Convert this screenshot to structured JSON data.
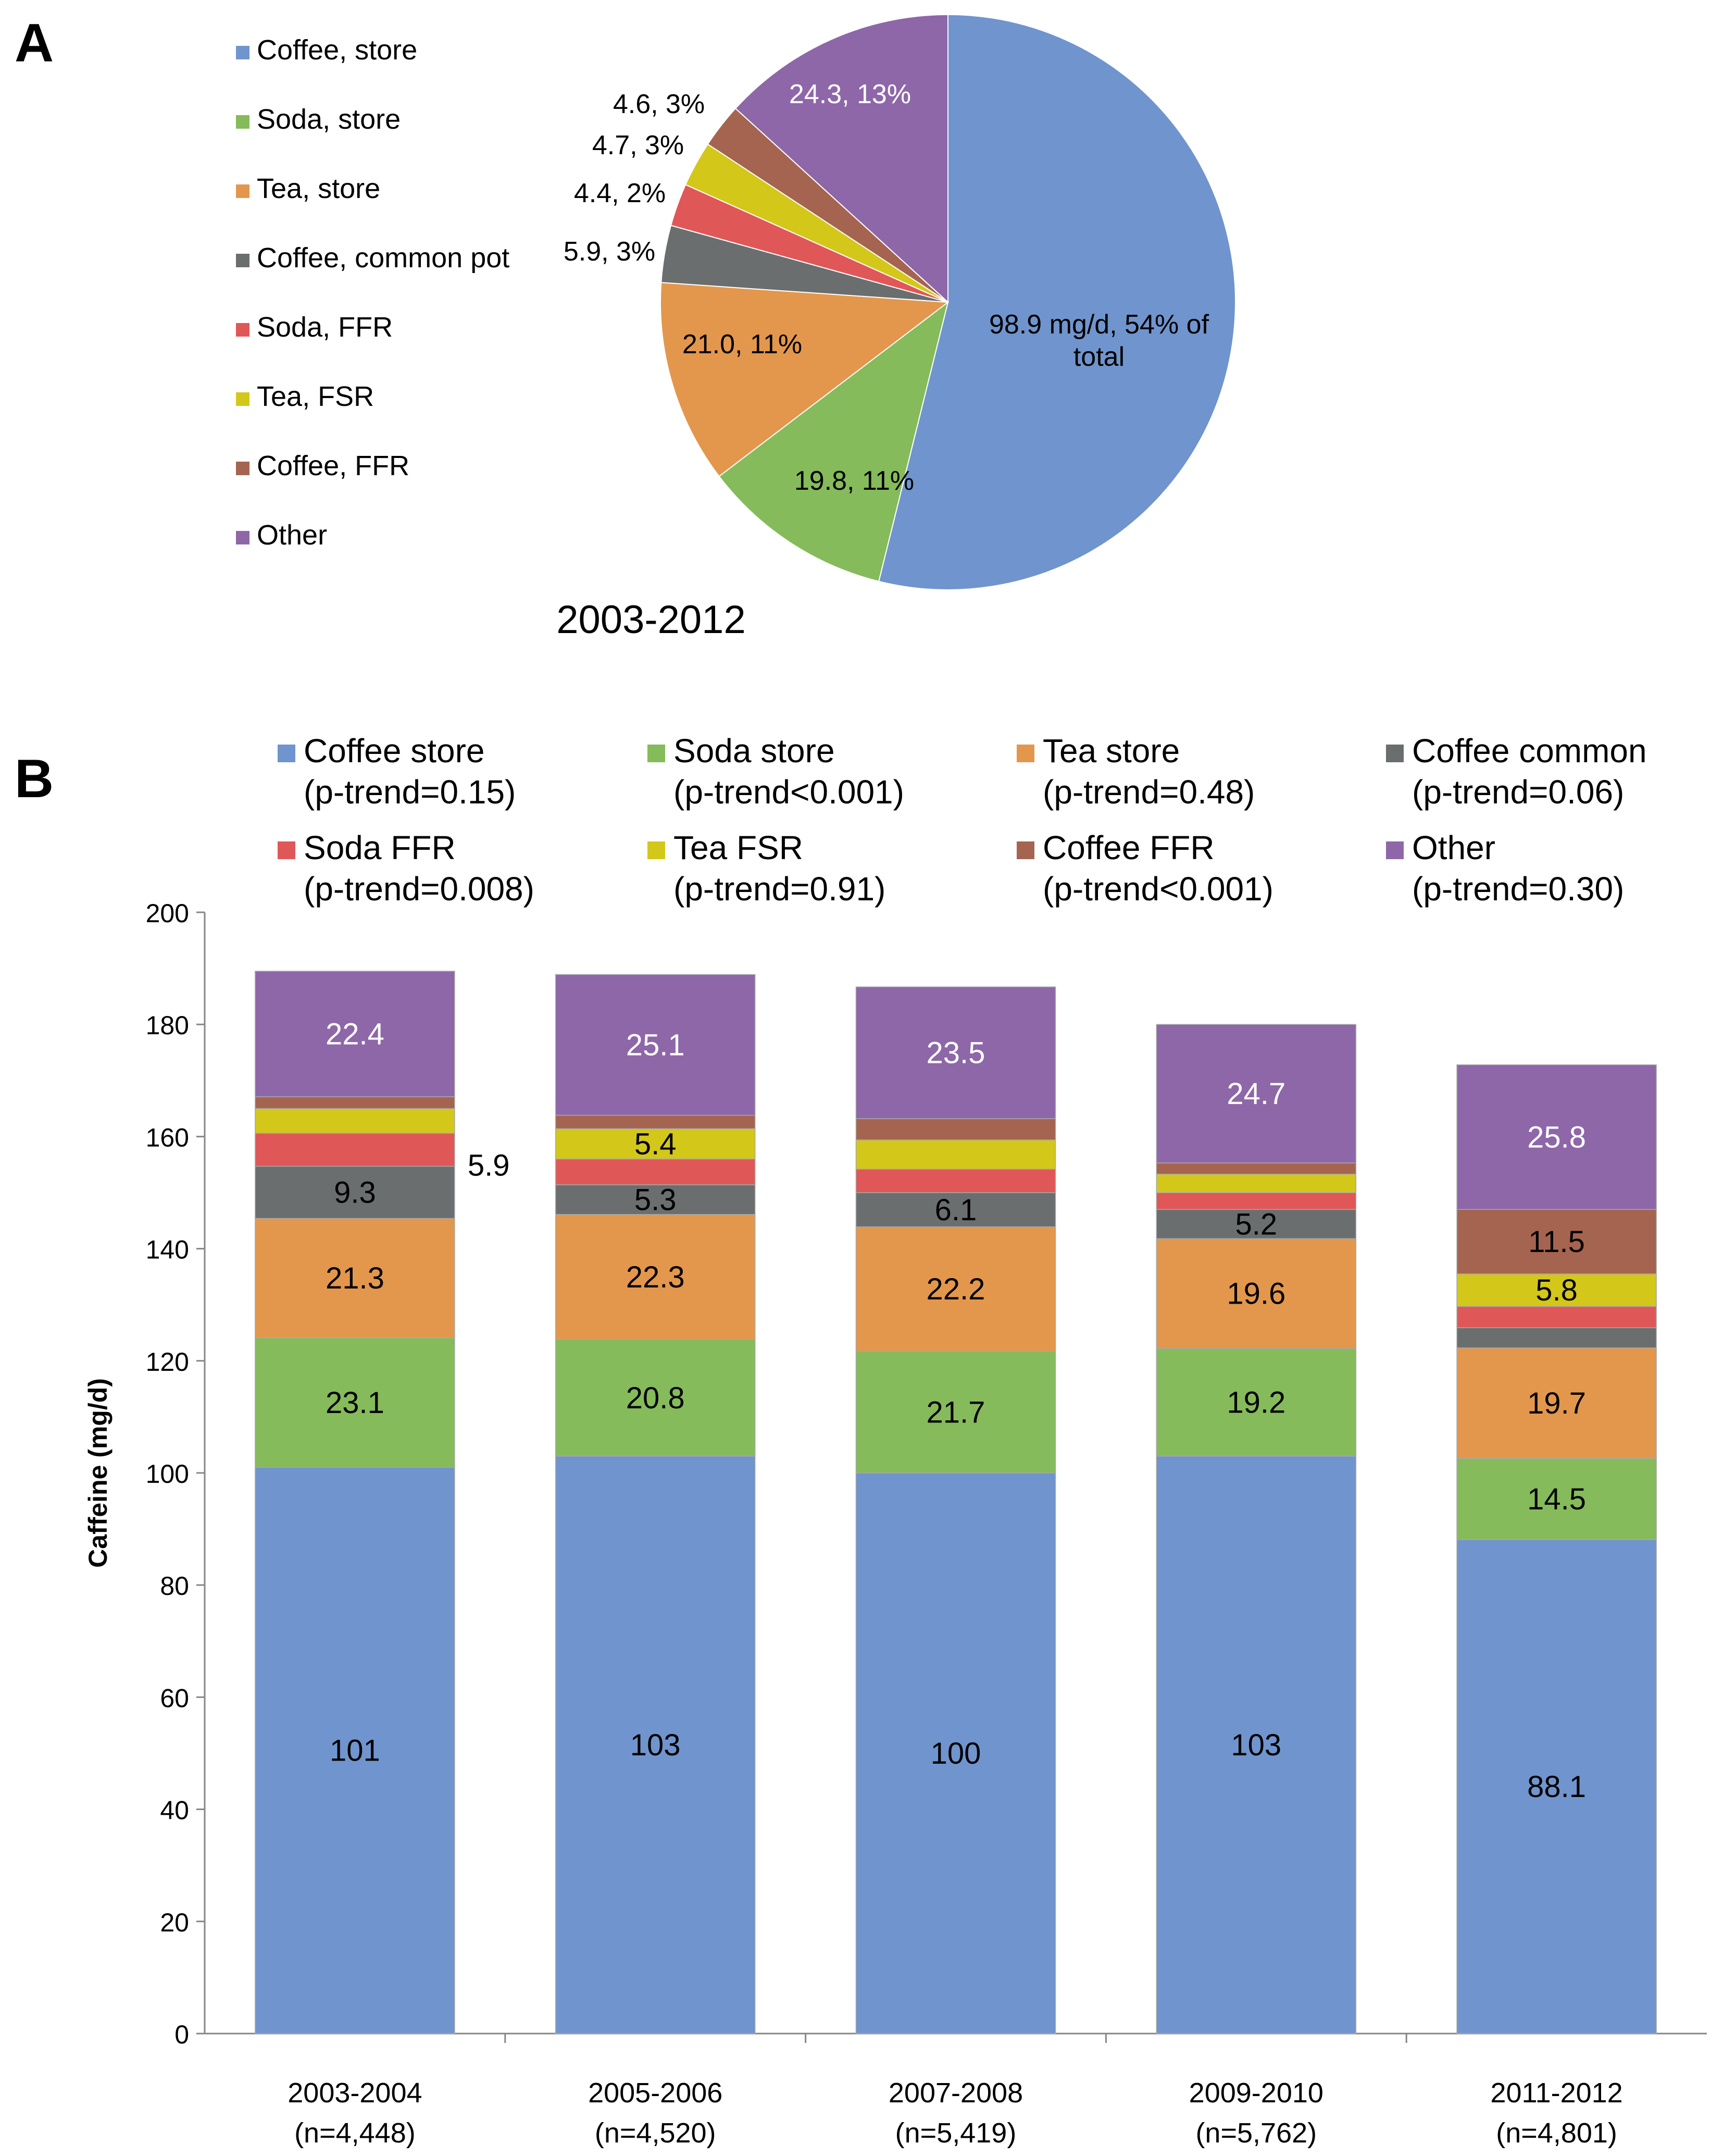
{
  "panel_a": {
    "label": "A",
    "caption": "2003-2012"
  },
  "panel_b": {
    "label": "B"
  },
  "colors": {
    "coffee_store": "#7094cd",
    "soda_store": "#85bb5a",
    "tea_store": "#e3974c",
    "coffee_common": "#6b6e6e",
    "soda_ffr": "#e05758",
    "tea_fsr": "#d3c71a",
    "coffee_ffr": "#a5644f",
    "other": "#8e67a8"
  },
  "chart_data": [
    {
      "type": "pie",
      "title": "2003-2012",
      "legend": [
        "Coffee, store",
        "Soda, store",
        "Tea, store",
        "Coffee, common pot",
        "Soda, FFR",
        "Tea, FSR",
        "Coffee, FFR",
        "Other"
      ],
      "slices": [
        {
          "name": "Coffee, store",
          "key": "coffee_store",
          "value": 98.9,
          "percent": 54,
          "label": "98.9 mg/d, 54% of total",
          "label_lines": [
            "98.9 mg/d, 54% of",
            "total"
          ],
          "label_color": "#000000"
        },
        {
          "name": "Soda, store",
          "key": "soda_store",
          "value": 19.8,
          "percent": 11,
          "label": "19.8, 11%",
          "label_lines": [
            "19.8, 11%"
          ],
          "label_color": "#000000"
        },
        {
          "name": "Tea, store",
          "key": "tea_store",
          "value": 21.0,
          "percent": 11,
          "label": "21.0, 11%",
          "label_lines": [
            "21.0, 11%"
          ],
          "label_color": "#000000"
        },
        {
          "name": "Coffee, common pot",
          "key": "coffee_common",
          "value": 5.9,
          "percent": 3,
          "label": "5.9, 3%",
          "label_lines": [
            "5.9, 3%"
          ],
          "label_color": "#000000"
        },
        {
          "name": "Soda, FFR",
          "key": "soda_ffr",
          "value": 4.4,
          "percent": 2,
          "label": "4.4, 2%",
          "label_lines": [
            "4.4, 2%"
          ],
          "label_color": "#000000"
        },
        {
          "name": "Tea, FSR",
          "key": "tea_fsr",
          "value": 4.7,
          "percent": 3,
          "label": "4.7, 3%",
          "label_lines": [
            "4.7, 3%"
          ],
          "label_color": "#000000"
        },
        {
          "name": "Coffee, FFR",
          "key": "coffee_ffr",
          "value": 4.6,
          "percent": 3,
          "label": "4.6, 3%",
          "label_lines": [
            "4.6, 3%"
          ],
          "label_color": "#000000"
        },
        {
          "name": "Other",
          "key": "other",
          "value": 24.3,
          "percent": 13,
          "label": "24.3, 13%",
          "label_lines": [
            "24.3, 13%"
          ],
          "label_color": "#ffffff"
        }
      ]
    },
    {
      "type": "bar",
      "stacked": true,
      "ylabel": "Caffeine (mg/d)",
      "xlabel": "",
      "ylim": [
        0,
        200
      ],
      "yticks": [
        0,
        20,
        40,
        60,
        80,
        100,
        120,
        140,
        160,
        180,
        200
      ],
      "categories": [
        {
          "label": "2003-2004",
          "n": "(n=4,448)"
        },
        {
          "label": "2005-2006",
          "n": "(n=4,520)"
        },
        {
          "label": "2007-2008",
          "n": "(n=5,419)"
        },
        {
          "label": "2009-2010",
          "n": "(n=5,762)"
        },
        {
          "label": "2011-2012",
          "n": "(n=4,801)"
        }
      ],
      "series": [
        {
          "name": "Coffee store",
          "trend": "(p-trend=0.15)",
          "key": "coffee_store",
          "values": [
            101,
            103,
            100,
            103,
            88.1
          ],
          "labels": [
            "101",
            "103",
            "100",
            "103",
            "88.1"
          ],
          "label_color": "#000000"
        },
        {
          "name": "Soda store",
          "trend": "(p-trend<0.001)",
          "key": "soda_store",
          "values": [
            23.1,
            20.8,
            21.7,
            19.2,
            14.5
          ],
          "labels": [
            "23.1",
            "20.8",
            "21.7",
            "19.2",
            "14.5"
          ],
          "label_color": "#000000"
        },
        {
          "name": "Tea store",
          "trend": "(p-trend=0.48)",
          "key": "tea_store",
          "values": [
            21.3,
            22.3,
            22.2,
            19.6,
            19.7
          ],
          "labels": [
            "21.3",
            "22.3",
            "22.2",
            "19.6",
            "19.7"
          ],
          "label_color": "#000000"
        },
        {
          "name": "Coffee common",
          "trend": "(p-trend=0.06)",
          "key": "coffee_common",
          "values": [
            9.3,
            5.3,
            6.1,
            5.2,
            3.6
          ],
          "labels": [
            "9.3",
            "5.3",
            "6.1",
            "5.2",
            ""
          ],
          "label_color": "#000000"
        },
        {
          "name": "Soda FFR",
          "trend": "(p-trend=0.008)",
          "key": "soda_ffr",
          "values": [
            5.9,
            4.6,
            4.2,
            3.0,
            3.8
          ],
          "labels": [
            "",
            "",
            "",
            "",
            ""
          ],
          "label_color": "#000000"
        },
        {
          "name": "Tea FSR",
          "trend": "(p-trend=0.91)",
          "key": "tea_fsr",
          "values": [
            4.4,
            5.4,
            5.2,
            3.3,
            5.8
          ],
          "labels": [
            "",
            "5.4",
            "",
            "",
            "5.8"
          ],
          "label_color": "#000000"
        },
        {
          "name": "Coffee FFR",
          "trend": "(p-trend<0.001)",
          "key": "coffee_ffr",
          "values": [
            2.1,
            2.4,
            3.8,
            2.0,
            11.5
          ],
          "labels": [
            "",
            "",
            "",
            "",
            "11.5"
          ],
          "label_color": "#000000"
        },
        {
          "name": "Other",
          "trend": "(p-trend=0.30)",
          "key": "other",
          "values": [
            22.4,
            25.1,
            23.5,
            24.7,
            25.8
          ],
          "labels": [
            "22.4",
            "25.1",
            "23.5",
            "24.7",
            "25.8"
          ],
          "label_color": "#ffffff"
        }
      ],
      "annotations": [
        {
          "text": "5.9",
          "category": 0,
          "series": "Soda FFR",
          "note": "outside label for 2003-2004 Soda FFR segment"
        }
      ]
    }
  ]
}
